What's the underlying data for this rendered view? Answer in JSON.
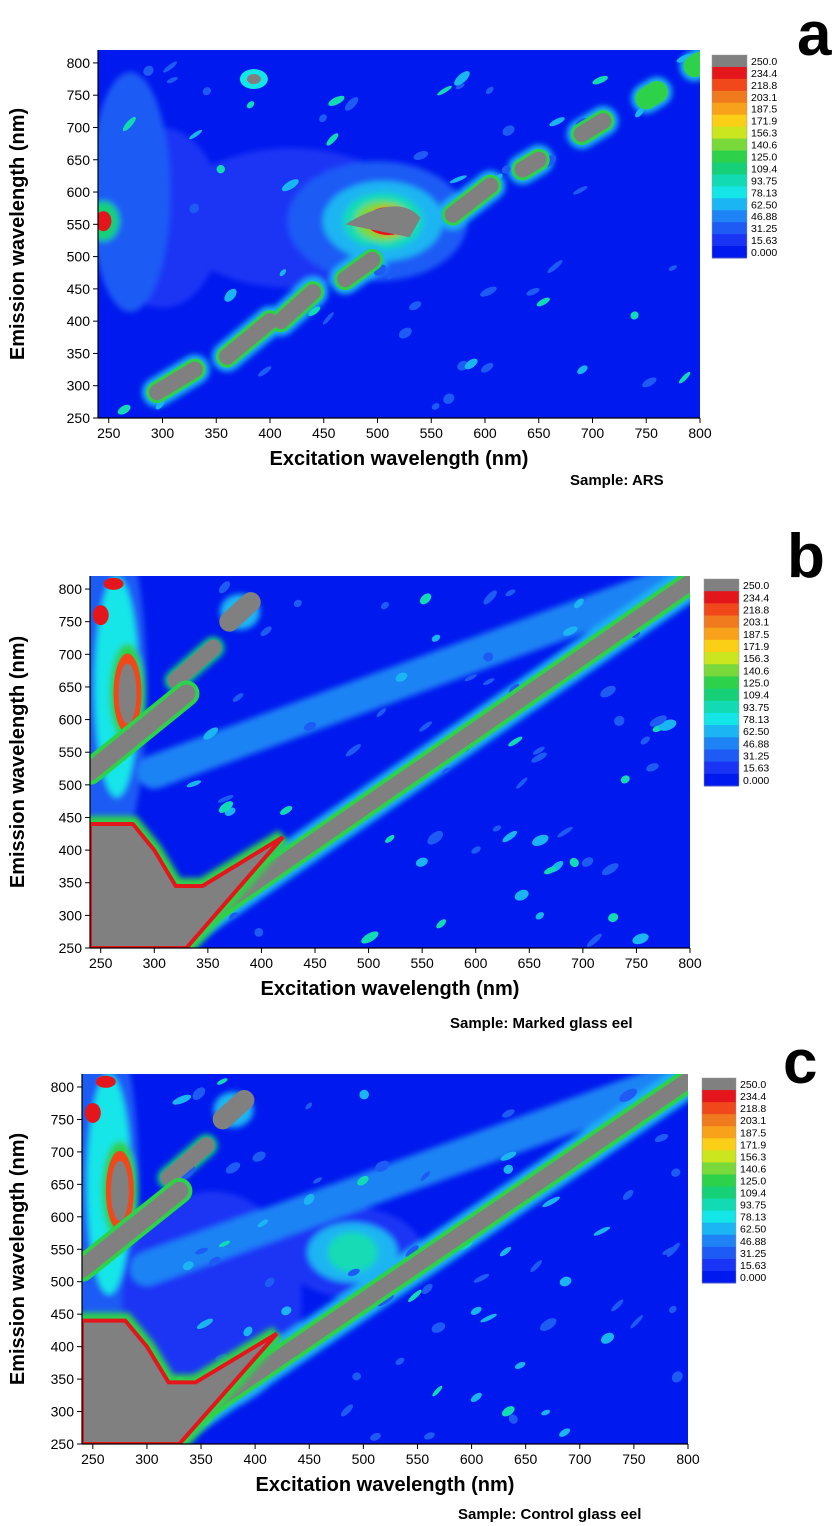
{
  "panels": [
    {
      "letter": "a",
      "sample": "Sample: ARS"
    },
    {
      "letter": "b",
      "sample": "Sample: Marked glass eel"
    },
    {
      "letter": "c",
      "sample": "Sample: Control glass eel"
    }
  ],
  "chart_data": [
    {
      "type": "heatmap",
      "title": "",
      "xlabel": "Excitation wavelength (nm)",
      "ylabel": "Emission wavelength (nm)",
      "xlim": [
        240,
        800
      ],
      "ylim": [
        250,
        820
      ],
      "xticks": [
        250,
        300,
        350,
        400,
        450,
        500,
        550,
        600,
        650,
        700,
        750,
        800
      ],
      "yticks": [
        250,
        300,
        350,
        400,
        450,
        500,
        550,
        600,
        650,
        700,
        750,
        800
      ],
      "colorbar": {
        "labels": [
          "250.0",
          "234.4",
          "218.8",
          "203.1",
          "187.5",
          "171.9",
          "156.3",
          "140.6",
          "125.0",
          "109.4",
          "93.75",
          "78.13",
          "62.50",
          "46.88",
          "31.25",
          "15.63",
          "0.000"
        ],
        "colors": [
          "#808080",
          "#e4161b",
          "#f0471b",
          "#f07a1e",
          "#f7a21a",
          "#fbcf16",
          "#cbe61f",
          "#7ad93a",
          "#2ed24a",
          "#16d078",
          "#12dbb4",
          "#14e6e8",
          "#1ab5f2",
          "#1e83f5",
          "#1e5bf5",
          "#1a34f5",
          "#0019ee"
        ]
      },
      "features": [
        {
          "kind": "scatter-band",
          "ex": 300,
          "em_from": 270,
          "em_to": 330
        },
        {
          "kind": "scatter-band",
          "ex": 370,
          "em_from": 350,
          "em_to": 400
        },
        {
          "kind": "scatter-band",
          "ex": 430,
          "em_from": 400,
          "em_to": 450
        },
        {
          "kind": "scatter-band",
          "ex": 480,
          "em_from": 465,
          "em_to": 495
        },
        {
          "kind": "scatter-band",
          "ex": 580,
          "em_from": 560,
          "em_to": 610
        },
        {
          "kind": "scatter-band",
          "ex": 640,
          "em_from": 630,
          "em_to": 650
        },
        {
          "kind": "scatter-band",
          "ex": 700,
          "em_from": 685,
          "em_to": 710
        },
        {
          "kind": "fluorescence-peak",
          "ex": 510,
          "em": 555,
          "intensity": 250
        },
        {
          "kind": "fluorescence-peak",
          "ex": 245,
          "em": 560,
          "intensity": 234.4
        },
        {
          "kind": "fluorescence-peak",
          "ex": 385,
          "em": 775,
          "intensity": 93.75
        }
      ]
    },
    {
      "type": "heatmap",
      "title": "",
      "xlabel": "Excitation wavelength (nm)",
      "ylabel": "Emission wavelength (nm)",
      "xlim": [
        240,
        800
      ],
      "ylim": [
        250,
        820
      ],
      "xticks": [
        250,
        300,
        350,
        400,
        450,
        500,
        550,
        600,
        650,
        700,
        750,
        800
      ],
      "yticks": [
        250,
        300,
        350,
        400,
        450,
        500,
        550,
        600,
        650,
        700,
        750,
        800
      ],
      "colorbar": {
        "labels": [
          "250.0",
          "234.4",
          "218.8",
          "203.1",
          "187.5",
          "171.9",
          "156.3",
          "140.6",
          "125.0",
          "109.4",
          "93.75",
          "78.13",
          "62.50",
          "46.88",
          "31.25",
          "15.63",
          "0.000"
        ],
        "colors": [
          "#808080",
          "#e4161b",
          "#f0471b",
          "#f07a1e",
          "#f7a21a",
          "#fbcf16",
          "#cbe61f",
          "#7ad93a",
          "#2ed24a",
          "#16d078",
          "#12dbb4",
          "#14e6e8",
          "#1ab5f2",
          "#1e83f5",
          "#1e5bf5",
          "#1a34f5",
          "#0019ee"
        ]
      },
      "features": [
        {
          "kind": "scatter-band",
          "ex": 320,
          "em_from": 250,
          "em_to": 820
        },
        {
          "kind": "fluorescence-peak",
          "ex": 270,
          "em": 640,
          "intensity": 250
        },
        {
          "kind": "fluorescence-peak",
          "ex": 250,
          "em": 400,
          "intensity": 250
        }
      ]
    },
    {
      "type": "heatmap",
      "title": "",
      "xlabel": "Excitation wavelength (nm)",
      "ylabel": "Emission wavelength (nm)",
      "xlim": [
        240,
        800
      ],
      "ylim": [
        250,
        820
      ],
      "xticks": [
        250,
        300,
        350,
        400,
        450,
        500,
        550,
        600,
        650,
        700,
        750,
        800
      ],
      "yticks": [
        250,
        300,
        350,
        400,
        450,
        500,
        550,
        600,
        650,
        700,
        750,
        800
      ],
      "colorbar": {
        "labels": [
          "250.0",
          "234.4",
          "218.8",
          "203.1",
          "187.5",
          "171.9",
          "156.3",
          "140.6",
          "125.0",
          "109.4",
          "93.75",
          "78.13",
          "62.50",
          "46.88",
          "31.25",
          "15.63",
          "0.000"
        ],
        "colors": [
          "#808080",
          "#e4161b",
          "#f0471b",
          "#f07a1e",
          "#f7a21a",
          "#fbcf16",
          "#cbe61f",
          "#7ad93a",
          "#2ed24a",
          "#16d078",
          "#12dbb4",
          "#14e6e8",
          "#1ab5f2",
          "#1e83f5",
          "#1e5bf5",
          "#1a34f5",
          "#0019ee"
        ]
      },
      "features": [
        {
          "kind": "scatter-band",
          "ex": 320,
          "em_from": 250,
          "em_to": 820
        },
        {
          "kind": "fluorescence-peak",
          "ex": 280,
          "em": 650,
          "intensity": 250
        },
        {
          "kind": "fluorescence-peak",
          "ex": 490,
          "em": 545,
          "intensity": 125.0
        },
        {
          "kind": "fluorescence-peak",
          "ex": 250,
          "em": 400,
          "intensity": 250
        }
      ]
    }
  ]
}
